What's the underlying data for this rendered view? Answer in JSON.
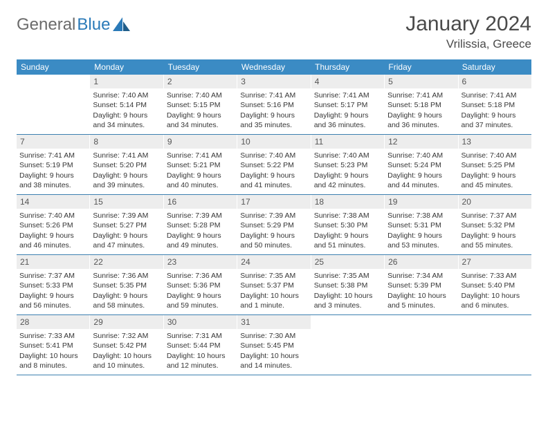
{
  "logo": {
    "part1": "General",
    "part2": "Blue"
  },
  "title": "January 2024",
  "location": "Vrilissia, Greece",
  "colors": {
    "header_bg": "#3b8bc4",
    "header_text": "#ffffff",
    "rule": "#3b7fb0",
    "daynum_bg": "#ededed",
    "body_text": "#353535",
    "logo_gray": "#6b6b6b",
    "logo_blue": "#2a7ab8"
  },
  "weekdays": [
    "Sunday",
    "Monday",
    "Tuesday",
    "Wednesday",
    "Thursday",
    "Friday",
    "Saturday"
  ],
  "weeks": [
    [
      {
        "n": "",
        "sr": "",
        "ss": "",
        "dl": ""
      },
      {
        "n": "1",
        "sr": "Sunrise: 7:40 AM",
        "ss": "Sunset: 5:14 PM",
        "dl": "Daylight: 9 hours and 34 minutes."
      },
      {
        "n": "2",
        "sr": "Sunrise: 7:40 AM",
        "ss": "Sunset: 5:15 PM",
        "dl": "Daylight: 9 hours and 34 minutes."
      },
      {
        "n": "3",
        "sr": "Sunrise: 7:41 AM",
        "ss": "Sunset: 5:16 PM",
        "dl": "Daylight: 9 hours and 35 minutes."
      },
      {
        "n": "4",
        "sr": "Sunrise: 7:41 AM",
        "ss": "Sunset: 5:17 PM",
        "dl": "Daylight: 9 hours and 36 minutes."
      },
      {
        "n": "5",
        "sr": "Sunrise: 7:41 AM",
        "ss": "Sunset: 5:18 PM",
        "dl": "Daylight: 9 hours and 36 minutes."
      },
      {
        "n": "6",
        "sr": "Sunrise: 7:41 AM",
        "ss": "Sunset: 5:18 PM",
        "dl": "Daylight: 9 hours and 37 minutes."
      }
    ],
    [
      {
        "n": "7",
        "sr": "Sunrise: 7:41 AM",
        "ss": "Sunset: 5:19 PM",
        "dl": "Daylight: 9 hours and 38 minutes."
      },
      {
        "n": "8",
        "sr": "Sunrise: 7:41 AM",
        "ss": "Sunset: 5:20 PM",
        "dl": "Daylight: 9 hours and 39 minutes."
      },
      {
        "n": "9",
        "sr": "Sunrise: 7:41 AM",
        "ss": "Sunset: 5:21 PM",
        "dl": "Daylight: 9 hours and 40 minutes."
      },
      {
        "n": "10",
        "sr": "Sunrise: 7:40 AM",
        "ss": "Sunset: 5:22 PM",
        "dl": "Daylight: 9 hours and 41 minutes."
      },
      {
        "n": "11",
        "sr": "Sunrise: 7:40 AM",
        "ss": "Sunset: 5:23 PM",
        "dl": "Daylight: 9 hours and 42 minutes."
      },
      {
        "n": "12",
        "sr": "Sunrise: 7:40 AM",
        "ss": "Sunset: 5:24 PM",
        "dl": "Daylight: 9 hours and 44 minutes."
      },
      {
        "n": "13",
        "sr": "Sunrise: 7:40 AM",
        "ss": "Sunset: 5:25 PM",
        "dl": "Daylight: 9 hours and 45 minutes."
      }
    ],
    [
      {
        "n": "14",
        "sr": "Sunrise: 7:40 AM",
        "ss": "Sunset: 5:26 PM",
        "dl": "Daylight: 9 hours and 46 minutes."
      },
      {
        "n": "15",
        "sr": "Sunrise: 7:39 AM",
        "ss": "Sunset: 5:27 PM",
        "dl": "Daylight: 9 hours and 47 minutes."
      },
      {
        "n": "16",
        "sr": "Sunrise: 7:39 AM",
        "ss": "Sunset: 5:28 PM",
        "dl": "Daylight: 9 hours and 49 minutes."
      },
      {
        "n": "17",
        "sr": "Sunrise: 7:39 AM",
        "ss": "Sunset: 5:29 PM",
        "dl": "Daylight: 9 hours and 50 minutes."
      },
      {
        "n": "18",
        "sr": "Sunrise: 7:38 AM",
        "ss": "Sunset: 5:30 PM",
        "dl": "Daylight: 9 hours and 51 minutes."
      },
      {
        "n": "19",
        "sr": "Sunrise: 7:38 AM",
        "ss": "Sunset: 5:31 PM",
        "dl": "Daylight: 9 hours and 53 minutes."
      },
      {
        "n": "20",
        "sr": "Sunrise: 7:37 AM",
        "ss": "Sunset: 5:32 PM",
        "dl": "Daylight: 9 hours and 55 minutes."
      }
    ],
    [
      {
        "n": "21",
        "sr": "Sunrise: 7:37 AM",
        "ss": "Sunset: 5:33 PM",
        "dl": "Daylight: 9 hours and 56 minutes."
      },
      {
        "n": "22",
        "sr": "Sunrise: 7:36 AM",
        "ss": "Sunset: 5:35 PM",
        "dl": "Daylight: 9 hours and 58 minutes."
      },
      {
        "n": "23",
        "sr": "Sunrise: 7:36 AM",
        "ss": "Sunset: 5:36 PM",
        "dl": "Daylight: 9 hours and 59 minutes."
      },
      {
        "n": "24",
        "sr": "Sunrise: 7:35 AM",
        "ss": "Sunset: 5:37 PM",
        "dl": "Daylight: 10 hours and 1 minute."
      },
      {
        "n": "25",
        "sr": "Sunrise: 7:35 AM",
        "ss": "Sunset: 5:38 PM",
        "dl": "Daylight: 10 hours and 3 minutes."
      },
      {
        "n": "26",
        "sr": "Sunrise: 7:34 AM",
        "ss": "Sunset: 5:39 PM",
        "dl": "Daylight: 10 hours and 5 minutes."
      },
      {
        "n": "27",
        "sr": "Sunrise: 7:33 AM",
        "ss": "Sunset: 5:40 PM",
        "dl": "Daylight: 10 hours and 6 minutes."
      }
    ],
    [
      {
        "n": "28",
        "sr": "Sunrise: 7:33 AM",
        "ss": "Sunset: 5:41 PM",
        "dl": "Daylight: 10 hours and 8 minutes."
      },
      {
        "n": "29",
        "sr": "Sunrise: 7:32 AM",
        "ss": "Sunset: 5:42 PM",
        "dl": "Daylight: 10 hours and 10 minutes."
      },
      {
        "n": "30",
        "sr": "Sunrise: 7:31 AM",
        "ss": "Sunset: 5:44 PM",
        "dl": "Daylight: 10 hours and 12 minutes."
      },
      {
        "n": "31",
        "sr": "Sunrise: 7:30 AM",
        "ss": "Sunset: 5:45 PM",
        "dl": "Daylight: 10 hours and 14 minutes."
      },
      {
        "n": "",
        "sr": "",
        "ss": "",
        "dl": ""
      },
      {
        "n": "",
        "sr": "",
        "ss": "",
        "dl": ""
      },
      {
        "n": "",
        "sr": "",
        "ss": "",
        "dl": ""
      }
    ]
  ]
}
